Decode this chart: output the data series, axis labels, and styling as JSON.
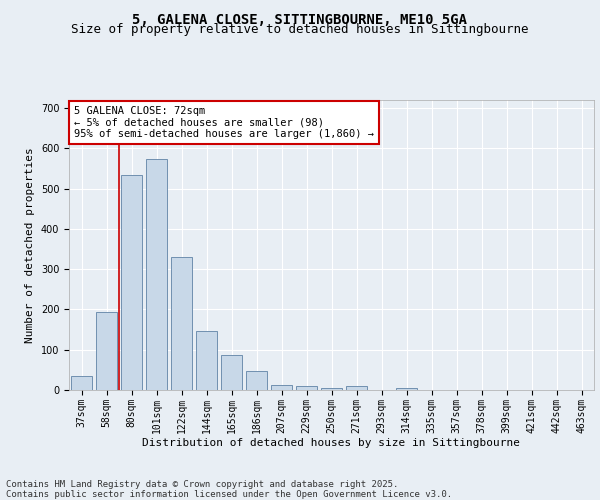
{
  "title1": "5, GALENA CLOSE, SITTINGBOURNE, ME10 5GA",
  "title2": "Size of property relative to detached houses in Sittingbourne",
  "xlabel": "Distribution of detached houses by size in Sittingbourne",
  "ylabel": "Number of detached properties",
  "categories": [
    "37sqm",
    "58sqm",
    "80sqm",
    "101sqm",
    "122sqm",
    "144sqm",
    "165sqm",
    "186sqm",
    "207sqm",
    "229sqm",
    "250sqm",
    "271sqm",
    "293sqm",
    "314sqm",
    "335sqm",
    "357sqm",
    "378sqm",
    "399sqm",
    "421sqm",
    "442sqm",
    "463sqm"
  ],
  "values": [
    35,
    193,
    533,
    573,
    330,
    147,
    87,
    46,
    13,
    10,
    6,
    10,
    0,
    4,
    0,
    0,
    0,
    0,
    0,
    0,
    0
  ],
  "bar_color": "#c8d8e8",
  "bar_edge_color": "#7090b0",
  "vline_x": 1.5,
  "vline_color": "#cc0000",
  "annotation_text": "5 GALENA CLOSE: 72sqm\n← 5% of detached houses are smaller (98)\n95% of semi-detached houses are larger (1,860) →",
  "annotation_box_color": "#ffffff",
  "annotation_box_edge": "#cc0000",
  "ylim": [
    0,
    720
  ],
  "yticks": [
    0,
    100,
    200,
    300,
    400,
    500,
    600,
    700
  ],
  "bg_color": "#e8eef4",
  "plot_bg_color": "#e8eef4",
  "footer_text": "Contains HM Land Registry data © Crown copyright and database right 2025.\nContains public sector information licensed under the Open Government Licence v3.0.",
  "title1_fontsize": 10,
  "title2_fontsize": 9,
  "xlabel_fontsize": 8,
  "ylabel_fontsize": 8,
  "tick_fontsize": 7,
  "annotation_fontsize": 7.5,
  "footer_fontsize": 6.5
}
